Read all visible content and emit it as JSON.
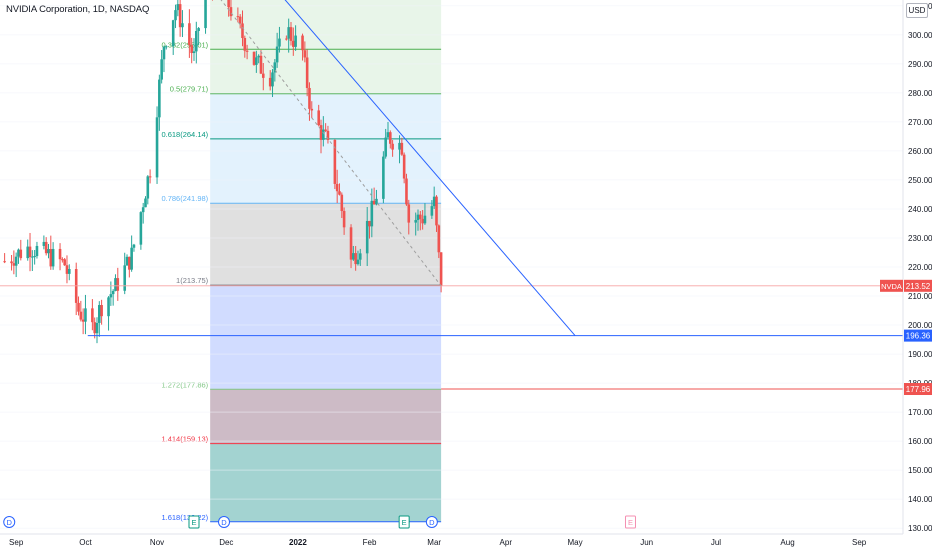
{
  "header": {
    "title": "NVIDIA Corporation, 1D, NASDAQ",
    "currency": "USD"
  },
  "colors": {
    "up": "#26a69a",
    "down": "#ef5350",
    "trendline": "#2962ff",
    "axis_text": "#131722"
  },
  "chart_data": {
    "type": "candlestick",
    "symbol": "NVDA",
    "interval": "1D",
    "exchange": "NASDAQ",
    "ylim": [
      128,
      312
    ],
    "y_ticks": [
      130,
      140,
      150,
      160,
      170,
      180,
      190,
      200,
      210,
      220,
      230,
      240,
      250,
      260,
      270,
      280,
      290,
      300,
      310
    ],
    "y_tick_labels": [
      "130.00",
      "140.00",
      "150.00",
      "160.00",
      "170.00",
      "180.00",
      "190.00",
      "200.00",
      "210.00",
      "220.00",
      "230.00",
      "240.00",
      "250.00",
      "260.00",
      "270.00",
      "280.00",
      "290.00",
      "300.00",
      "310.00"
    ],
    "x_ticks": [
      {
        "date": "2021-09-01",
        "label": "Sep"
      },
      {
        "date": "2021-10-01",
        "label": "Oct"
      },
      {
        "date": "2021-11-01",
        "label": "Nov"
      },
      {
        "date": "2021-12-01",
        "label": "Dec"
      },
      {
        "date": "2022-01-01",
        "label": "2022"
      },
      {
        "date": "2022-02-01",
        "label": "Feb"
      },
      {
        "date": "2022-03-01",
        "label": "Mar"
      },
      {
        "date": "2022-04-01",
        "label": "Apr"
      },
      {
        "date": "2022-05-01",
        "label": "May"
      },
      {
        "date": "2022-06-01",
        "label": "Jun"
      },
      {
        "date": "2022-07-01",
        "label": "Jul"
      },
      {
        "date": "2022-08-01",
        "label": "Aug"
      },
      {
        "date": "2022-09-01",
        "label": "Sep"
      }
    ],
    "x_range": [
      "2021-08-25",
      "2022-09-20"
    ],
    "closes": [
      {
        "date": "2021-08-27",
        "close": 222
      },
      {
        "date": "2021-09-07",
        "close": 227
      },
      {
        "date": "2021-09-15",
        "close": 224
      },
      {
        "date": "2021-09-22",
        "close": 221
      },
      {
        "date": "2021-09-28",
        "close": 205
      },
      {
        "date": "2021-10-04",
        "close": 199
      },
      {
        "date": "2021-10-08",
        "close": 207
      },
      {
        "date": "2021-10-14",
        "close": 213
      },
      {
        "date": "2021-10-21",
        "close": 224
      },
      {
        "date": "2021-10-29",
        "close": 254
      },
      {
        "date": "2021-11-04",
        "close": 297
      },
      {
        "date": "2021-11-09",
        "close": 309
      },
      {
        "date": "2021-11-12",
        "close": 304
      },
      {
        "date": "2021-11-17",
        "close": 292
      },
      {
        "date": "2021-11-22",
        "close": 319
      },
      {
        "date": "2021-11-29",
        "close": 316
      },
      {
        "date": "2021-12-06",
        "close": 303
      },
      {
        "date": "2021-12-13",
        "close": 291
      },
      {
        "date": "2021-12-20",
        "close": 286
      },
      {
        "date": "2021-12-27",
        "close": 302
      },
      {
        "date": "2022-01-03",
        "close": 294
      },
      {
        "date": "2022-01-07",
        "close": 272
      },
      {
        "date": "2022-01-13",
        "close": 264
      },
      {
        "date": "2022-01-19",
        "close": 244
      },
      {
        "date": "2022-01-24",
        "close": 222
      },
      {
        "date": "2022-01-28",
        "close": 228
      },
      {
        "date": "2022-02-03",
        "close": 241
      },
      {
        "date": "2022-02-09",
        "close": 265
      },
      {
        "date": "2022-02-15",
        "close": 262
      },
      {
        "date": "2022-02-18",
        "close": 236
      },
      {
        "date": "2022-02-24",
        "close": 237
      },
      {
        "date": "2022-03-01",
        "close": 242
      },
      {
        "date": "2022-03-04",
        "close": 213.52
      }
    ],
    "last_price": {
      "label": "NVDA",
      "value": 213.52,
      "text": "213.52"
    },
    "price_lines": [
      {
        "value": 196.36,
        "text": "196.36",
        "color": "#2962ff"
      },
      {
        "value": 177.96,
        "text": "177.96",
        "color": "#ef5350"
      }
    ],
    "fib_retracement": {
      "start_date": "2021-11-24",
      "end_date": "2022-03-04",
      "levels": [
        {
          "ratio": 0.382,
          "price": 295.01,
          "label": "0.382(295.01)",
          "color": "#4caf50",
          "fill": "#e8f5e9"
        },
        {
          "ratio": 0.5,
          "price": 279.71,
          "label": "0.5(279.71)",
          "color": "#4caf50",
          "fill": "#e8f5e9"
        },
        {
          "ratio": 0.618,
          "price": 264.14,
          "label": "0.618(264.14)",
          "color": "#089981",
          "fill": "#e3f2fd"
        },
        {
          "ratio": 0.786,
          "price": 241.98,
          "label": "0.786(241.98)",
          "color": "#64b5f6",
          "fill": "#e3f2fd"
        },
        {
          "ratio": 1,
          "price": 213.75,
          "label": "1(213.75)",
          "color": "#787b86",
          "fill": "#e0e0e0"
        },
        {
          "ratio": 1.272,
          "price": 177.86,
          "label": "1.272(177.86)",
          "color": "#81c784",
          "fill": "#d1dcff"
        },
        {
          "ratio": 1.414,
          "price": 159.13,
          "label": "1.414(159.13)",
          "color": "#f23645",
          "fill": "#cdbbc6"
        },
        {
          "ratio": 1.618,
          "price": 132.22,
          "label": "1.618(132.22)",
          "color": "#2962ff",
          "fill": "#a3d3d1"
        }
      ]
    },
    "trendlines": [
      {
        "from": {
          "date": "2021-12-20",
          "price": 318
        },
        "to": {
          "date": "2022-05-01",
          "price": 196.36
        },
        "color": "#2962ff",
        "style": "solid"
      },
      {
        "from": {
          "date": "2021-11-22",
          "price": 319
        },
        "to": {
          "date": "2022-03-04",
          "price": 213.5
        },
        "color": "#9e9e9e",
        "style": "dashed"
      }
    ],
    "events": [
      {
        "date": "2021-08-29",
        "type": "D"
      },
      {
        "date": "2021-11-17",
        "type": "E"
      },
      {
        "date": "2021-11-30",
        "type": "D"
      },
      {
        "date": "2022-02-16",
        "type": "E"
      },
      {
        "date": "2022-02-28",
        "type": "D"
      },
      {
        "date": "2022-05-25",
        "type": "E",
        "future": true
      }
    ]
  }
}
